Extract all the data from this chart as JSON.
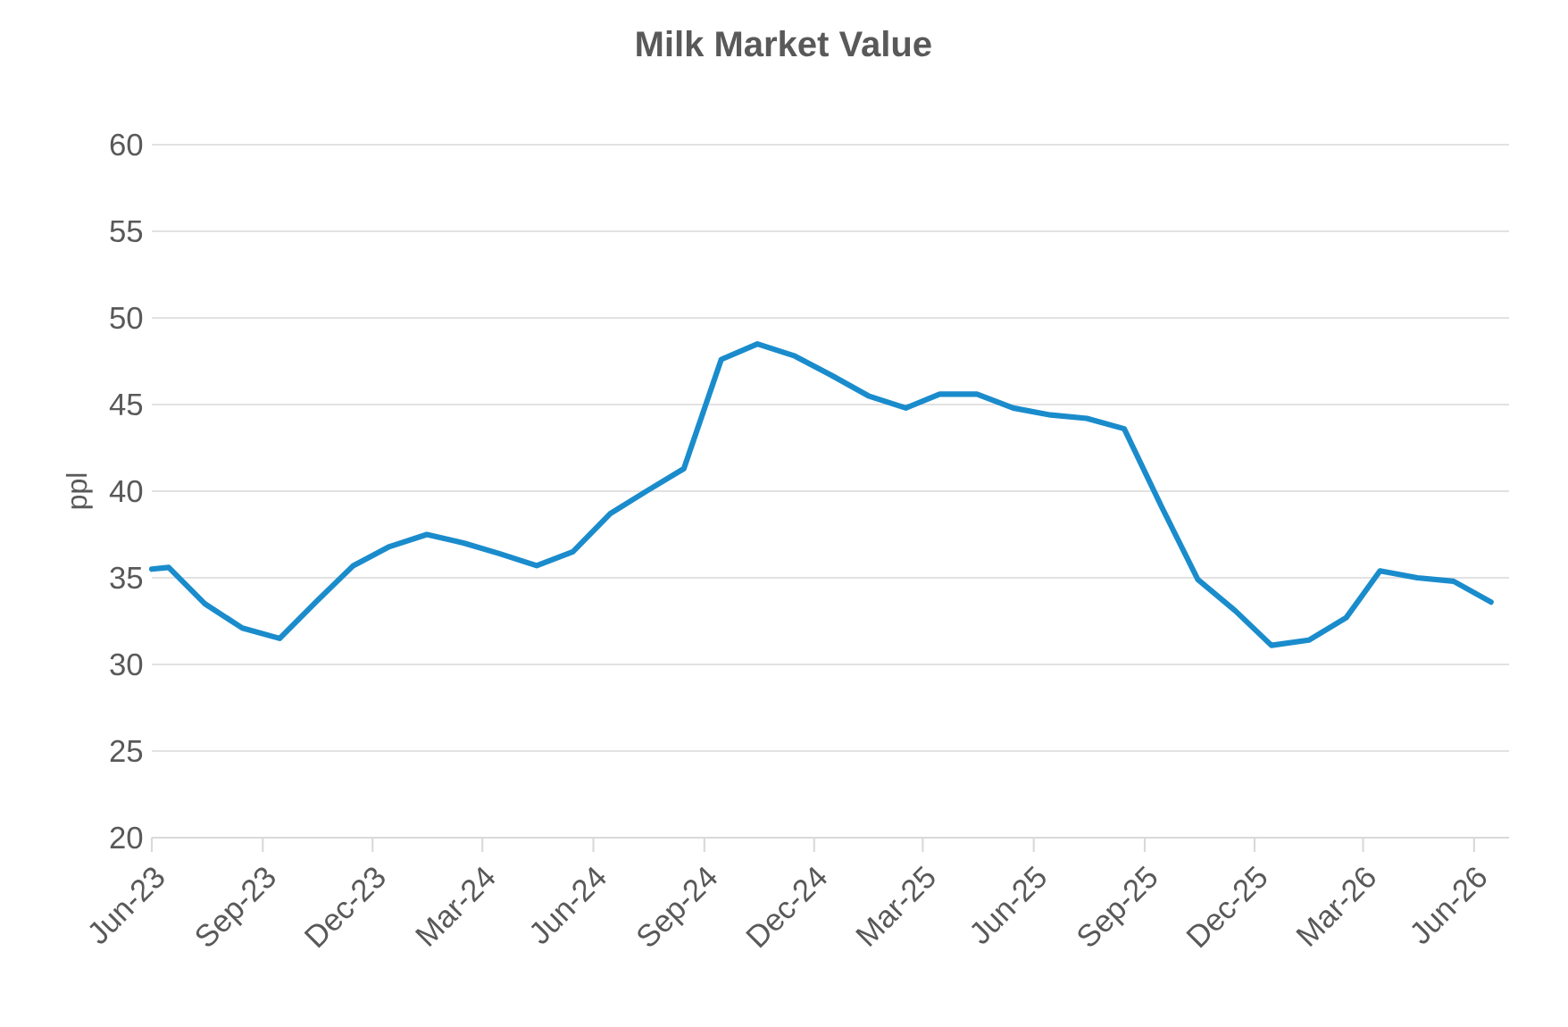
{
  "chart_data": {
    "type": "line",
    "title": "Milk Market Value",
    "ylabel": "ppl",
    "x": [
      "2023-06-01",
      "2023-06-15",
      "2023-07-15",
      "2023-08-15",
      "2023-09-15",
      "2023-10-15",
      "2023-11-15",
      "2023-12-15",
      "2024-01-15",
      "2024-02-15",
      "2024-03-15",
      "2024-04-15",
      "2024-05-15",
      "2024-06-15",
      "2024-07-15",
      "2024-08-15",
      "2024-09-15",
      "2024-10-15",
      "2024-11-15",
      "2024-12-15",
      "2025-01-15",
      "2025-02-15",
      "2025-03-15",
      "2025-04-15",
      "2025-05-15",
      "2025-06-15",
      "2025-07-15",
      "2025-08-15",
      "2025-09-15",
      "2025-10-15",
      "2025-11-15",
      "2025-12-15",
      "2026-01-15",
      "2026-02-15",
      "2026-03-15",
      "2026-04-15",
      "2026-05-15",
      "2026-06-15"
    ],
    "series": [
      {
        "color": "#1a8ccc",
        "values": [
          35.5,
          35.6,
          33.5,
          32.1,
          31.5,
          33.6,
          35.7,
          36.8,
          37.5,
          37.0,
          36.4,
          35.7,
          36.5,
          38.7,
          40.0,
          41.3,
          47.6,
          48.5,
          47.8,
          46.7,
          45.5,
          44.8,
          45.6,
          45.6,
          44.8,
          44.4,
          44.2,
          43.6,
          39.1,
          34.9,
          33.1,
          31.1,
          31.4,
          32.7,
          35.4,
          35.0,
          34.8,
          33.6
        ]
      }
    ],
    "xlim": [
      "2023-06-01",
      "2026-06-30"
    ],
    "xticks": [
      {
        "value": "2023-06-01",
        "label": "Jun-23"
      },
      {
        "value": "2023-09-01",
        "label": "Sep-23"
      },
      {
        "value": "2023-12-01",
        "label": "Dec-23"
      },
      {
        "value": "2024-03-01",
        "label": "Mar-24"
      },
      {
        "value": "2024-06-01",
        "label": "Jun-24"
      },
      {
        "value": "2024-09-01",
        "label": "Sep-24"
      },
      {
        "value": "2024-12-01",
        "label": "Dec-24"
      },
      {
        "value": "2025-03-01",
        "label": "Mar-25"
      },
      {
        "value": "2025-06-01",
        "label": "Jun-25"
      },
      {
        "value": "2025-09-01",
        "label": "Sep-25"
      },
      {
        "value": "2025-12-01",
        "label": "Dec-25"
      },
      {
        "value": "2026-03-01",
        "label": "Mar-26"
      },
      {
        "value": "2026-06-01",
        "label": "Jun-26"
      }
    ],
    "ylim": [
      20,
      60
    ],
    "yticks": [
      20,
      25,
      30,
      35,
      40,
      45,
      50,
      55,
      60
    ],
    "grid": "y"
  }
}
